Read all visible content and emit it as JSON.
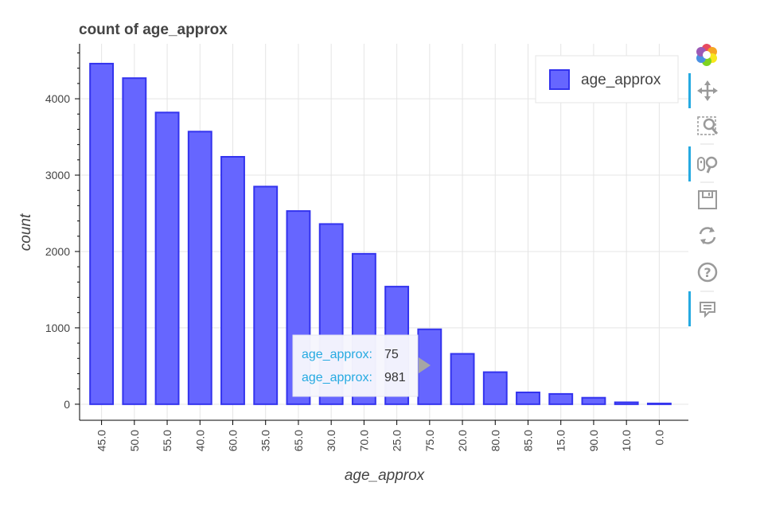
{
  "chart_data": {
    "type": "bar",
    "title": "count of age_approx",
    "xlabel": "age_approx",
    "ylabel": "count",
    "categories": [
      "45.0",
      "50.0",
      "55.0",
      "40.0",
      "60.0",
      "35.0",
      "65.0",
      "30.0",
      "70.0",
      "25.0",
      "75.0",
      "20.0",
      "80.0",
      "85.0",
      "15.0",
      "90.0",
      "10.0",
      "0.0"
    ],
    "series": [
      {
        "name": "age_approx",
        "values": [
          4460,
          4270,
          3820,
          3570,
          3240,
          2850,
          2530,
          2360,
          1970,
          1540,
          981,
          660,
          420,
          155,
          135,
          85,
          25,
          10
        ]
      }
    ],
    "ylim": [
      -210,
      4720
    ],
    "yticks": [
      0,
      1000,
      2000,
      3000,
      4000
    ],
    "ytick_labels": [
      "0",
      "1000",
      "2000",
      "3000",
      "4000"
    ],
    "grid": true,
    "legend_position": "top-right",
    "bar_color": "#6666ff",
    "bar_edge_color": "#3333ee",
    "tooltip": {
      "rows": [
        {
          "key": "age_approx:",
          "value": "75"
        },
        {
          "key": "age_approx:",
          "value": "981"
        }
      ]
    }
  },
  "toolbar": {
    "tools": [
      {
        "name": "bokeh-logo-icon",
        "active": false,
        "interactable": true
      },
      {
        "name": "pan-icon",
        "active": true,
        "interactable": true
      },
      {
        "name": "box-zoom-icon",
        "active": false,
        "interactable": true
      },
      {
        "name": "wheel-zoom-icon",
        "active": true,
        "interactable": true
      },
      {
        "name": "save-icon",
        "active": false,
        "interactable": true
      },
      {
        "name": "reset-icon",
        "active": false,
        "interactable": true
      },
      {
        "name": "help-icon",
        "active": false,
        "interactable": true
      },
      {
        "name": "hover-icon",
        "active": true,
        "interactable": true
      }
    ],
    "active_color": "#26aae1",
    "icon_color": "#9a9a9a"
  }
}
